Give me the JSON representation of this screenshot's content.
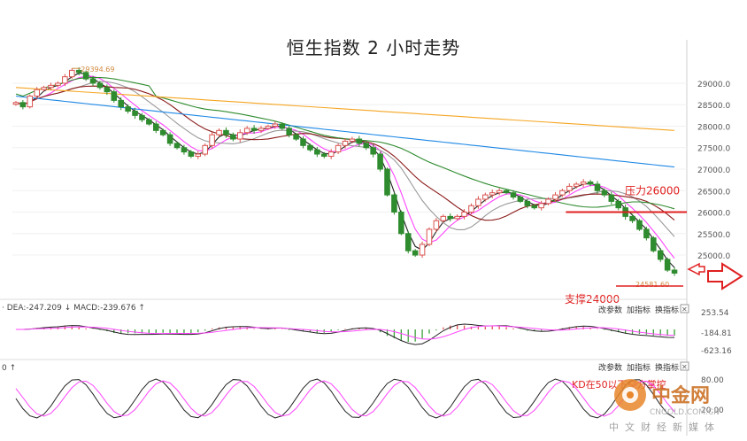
{
  "title": "恒生指数 2 小时走势",
  "chart_data": [
    {
      "type": "candlestick",
      "title": "恒生指数 2 小时走势",
      "ylim": [
        24300,
        29700
      ],
      "yticks": [
        "29000.0",
        "28500.0",
        "28000.0",
        "27500.0",
        "27000.0",
        "26500.0",
        "26000.0",
        "25500.0",
        "25000.0"
      ],
      "ytick_values": [
        29000,
        28500,
        28000,
        27500,
        27000,
        26500,
        26000,
        25500,
        25000
      ],
      "high_label": "29394.69",
      "low_label": "24581.60",
      "annotations": {
        "resistance": {
          "text": "压力26000",
          "value": 26000
        },
        "support": {
          "text": "支撑24000",
          "value": 24000
        }
      },
      "close": [
        28550,
        28450,
        28700,
        28850,
        28900,
        28950,
        29000,
        29150,
        29300,
        29250,
        29100,
        29000,
        28900,
        28800,
        28600,
        28450,
        28350,
        28250,
        28150,
        28050,
        27900,
        27800,
        27600,
        27500,
        27400,
        27300,
        27350,
        27550,
        27800,
        27900,
        27800,
        27700,
        27850,
        27950,
        27900,
        27950,
        28000,
        28050,
        27950,
        27800,
        27700,
        27550,
        27450,
        27350,
        27300,
        27400,
        27550,
        27650,
        27700,
        27600,
        27500,
        27350,
        27000,
        26400,
        26000,
        25500,
        25100,
        25000,
        25250,
        25600,
        25800,
        25900,
        25850,
        25900,
        26000,
        26150,
        26300,
        26400,
        26450,
        26500,
        26450,
        26350,
        26250,
        26150,
        26100,
        26200,
        26300,
        26400,
        26500,
        26600,
        26650,
        26700,
        26650,
        26500,
        26400,
        26250,
        26100,
        25900,
        25800,
        25600,
        25400,
        25100,
        24900,
        24650,
        24580
      ],
      "series": [
        {
          "name": "MA1",
          "color": "#222222"
        },
        {
          "name": "MA2",
          "color": "#ff44ff"
        },
        {
          "name": "MA3",
          "color": "#999999"
        },
        {
          "name": "MA4",
          "color": "#8b1a1a"
        },
        {
          "name": "MA5",
          "color": "#2e8b2e"
        },
        {
          "name": "MA6",
          "color": "#1e88e5"
        },
        {
          "name": "MA7",
          "color": "#f5a623"
        }
      ]
    },
    {
      "type": "macd",
      "legend_text": "· DEA:-247.209 ↓ MACD:-239.676 ↑",
      "yticks": [
        "253.54",
        "-184.81",
        "-623.16"
      ],
      "buttons": [
        "改参数",
        "加指标",
        "换指标"
      ]
    },
    {
      "type": "kdj",
      "legend_text": "0 ↑",
      "yticks": [
        "80.00",
        "20.00"
      ],
      "buttons": [
        "改参数",
        "加指标",
        "换指标"
      ],
      "annotation": "KD在50以下空方掌控"
    }
  ],
  "watermark": {
    "brand": "中金网",
    "domain": "CNGOLD.COM.CN",
    "tagline": "中文财经新媒体"
  },
  "colors": {
    "up": "#d9534f",
    "down": "#2e8b2e",
    "accent": "#e02020"
  }
}
